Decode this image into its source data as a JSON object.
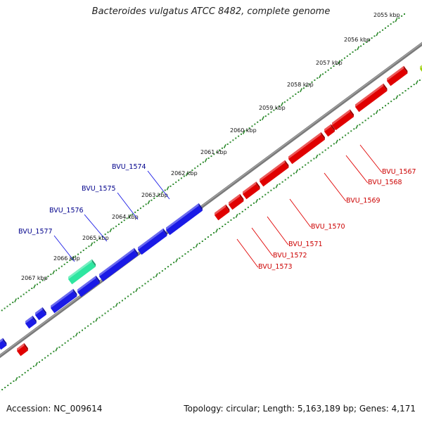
{
  "title": "Bacteroides vulgatus ATCC 8482, complete genome",
  "footer": {
    "accession": "Accession: NC_009614",
    "summary": "Topology: circular; Length: 5,163,189 bp; Genes: 4,171"
  },
  "colors": {
    "backbone": "#7a7a7a",
    "ruler": "#2e8b2e",
    "forward_gene": "#1a1ae6",
    "reverse_gene": "#e00000",
    "highlight_gene": "#2ee6a0",
    "forward_label": "#00008b",
    "reverse_label": "#cc0000"
  },
  "ruler_ticks": [
    "2055 kbp",
    "2056 kbp",
    "2057 kbp",
    "2058 kbp",
    "2059 kbp",
    "2060 kbp",
    "2061 kbp",
    "2062 kbp",
    "2063 kbp",
    "2064 kbp",
    "2065 kbp",
    "2066 kbp",
    "2067 kbp"
  ],
  "forward_labels": [
    "BVU_1574",
    "BVU_1575",
    "BVU_1576",
    "BVU_1577"
  ],
  "reverse_labels": [
    "BVU_1567",
    "BVU_1568",
    "BVU_1569",
    "BVU_1570",
    "BVU_1571",
    "BVU_1572",
    "BVU_1573"
  ]
}
